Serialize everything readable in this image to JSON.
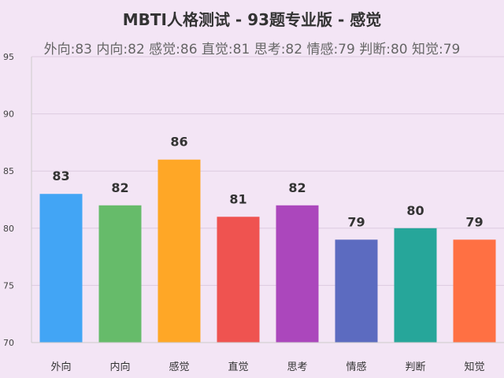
{
  "chart_data": {
    "type": "bar",
    "title": "MBTI人格测试 - 93题专业版 - 感觉",
    "subtitle": "外向:83 内向:82 感觉:86 直觉:81 思考:82 情感:79 判断:80 知觉:79",
    "categories": [
      "外向",
      "内向",
      "感觉",
      "直觉",
      "思考",
      "情感",
      "判断",
      "知觉"
    ],
    "values": [
      83,
      82,
      86,
      81,
      82,
      79,
      80,
      79
    ],
    "colors": [
      "#42a5f5",
      "#66bb6a",
      "#ffa726",
      "#ef5350",
      "#ab47bc",
      "#5c6bc0",
      "#26a69a",
      "#ff7043"
    ],
    "xlabel": "",
    "ylabel": "",
    "ylim": [
      70,
      95
    ],
    "yticks": [
      70,
      75,
      80,
      85,
      90,
      95
    ],
    "grid": true,
    "data_labels": true
  }
}
